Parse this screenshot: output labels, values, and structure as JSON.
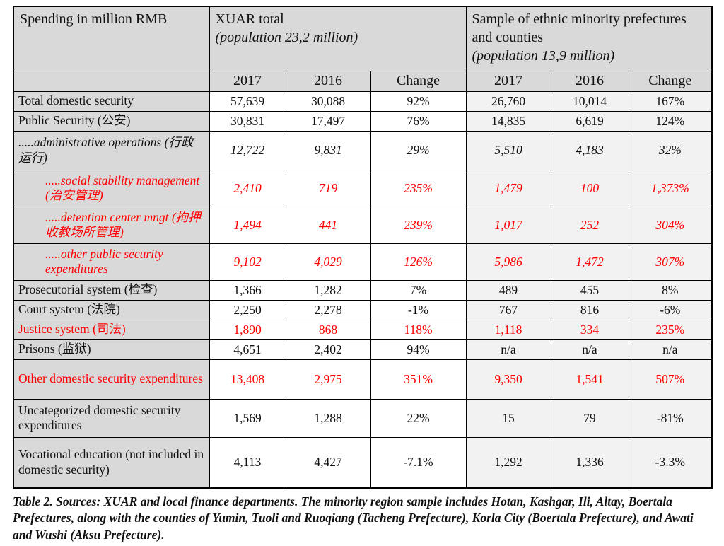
{
  "header": {
    "corner": "Spending in million RMB",
    "group_xuar": {
      "title": "XUAR total",
      "subtitle": "(population 23,2 million)"
    },
    "group_sample": {
      "title": "Sample of ethnic minority prefectures and counties",
      "subtitle": "(population 13,9 million)"
    },
    "years": [
      "2017",
      "2016",
      "Change"
    ]
  },
  "table": {
    "column_groups": [
      "XUAR total",
      "Sample of ethnic minority prefectures and counties"
    ],
    "columns": [
      "2017",
      "2016",
      "Change",
      "2017",
      "2016",
      "Change"
    ],
    "rows": [
      {
        "label": "Total domestic security",
        "values": [
          "57,639",
          "30,088",
          "92%",
          "26,760",
          "10,014",
          "167%"
        ],
        "color": "black",
        "italic": false,
        "indent": 0
      },
      {
        "label": "Public Security (公安)",
        "values": [
          "30,831",
          "17,497",
          "76%",
          "14,835",
          "6,619",
          "124%"
        ],
        "color": "black",
        "italic": false,
        "indent": 0
      },
      {
        "label": ".....administrative operations (行政运行)",
        "values": [
          "12,722",
          "9,831",
          "29%",
          "5,510",
          "4,183",
          "32%"
        ],
        "color": "black",
        "italic": true,
        "indent": 0
      },
      {
        "label": ".....social stability management (治安管理)",
        "values": [
          "2,410",
          "719",
          "235%",
          "1,479",
          "100",
          "1,373%"
        ],
        "color": "red",
        "italic": true,
        "indent": 1
      },
      {
        "label": ".....detention center mngt (拘押收教场所管理)",
        "values": [
          "1,494",
          "441",
          "239%",
          "1,017",
          "252",
          "304%"
        ],
        "color": "red",
        "italic": true,
        "indent": 1
      },
      {
        "label": ".....other public security expenditures",
        "values": [
          "9,102",
          "4,029",
          "126%",
          "5,986",
          "1,472",
          "307%"
        ],
        "color": "red",
        "italic": true,
        "indent": 1
      },
      {
        "label": "Prosecutorial system (检查)",
        "values": [
          "1,366",
          "1,282",
          "7%",
          "489",
          "455",
          "8%"
        ],
        "color": "black",
        "italic": false,
        "indent": 0
      },
      {
        "label": "Court system (法院)",
        "values": [
          "2,250",
          "2,278",
          "-1%",
          "767",
          "816",
          "-6%"
        ],
        "color": "black",
        "italic": false,
        "indent": 0
      },
      {
        "label": "Justice system (司法)",
        "values": [
          "1,890",
          "868",
          "118%",
          "1,118",
          "334",
          "235%"
        ],
        "color": "red",
        "italic": false,
        "indent": 0
      },
      {
        "label": "Prisons (监狱)",
        "values": [
          "4,651",
          "2,402",
          "94%",
          "n/a",
          "n/a",
          "n/a"
        ],
        "color": "black",
        "italic": false,
        "indent": 0
      },
      {
        "label": "Other domestic security expenditures",
        "values": [
          "13,408",
          "2,975",
          "351%",
          "9,350",
          "1,541",
          "507%"
        ],
        "color": "red",
        "italic": false,
        "indent": 0
      },
      {
        "label": "Uncategorized domestic security expenditures",
        "values": [
          "1,569",
          "1,288",
          "22%",
          "15",
          "79",
          "-81%"
        ],
        "color": "black",
        "italic": false,
        "indent": 0
      },
      {
        "label": "Vocational education (not included in domestic security)",
        "values": [
          "4,113",
          "4,427",
          "-7.1%",
          "1,292",
          "1,336",
          "-3.3%"
        ],
        "color": "black",
        "italic": false,
        "indent": 0
      }
    ]
  },
  "caption": "Table 2. Sources: XUAR and local finance departments. The minority region sample includes Hotan, Kashgar, Ili, Altay, Boertala Prefectures, along with the counties of Yumin, Tuoli and Ruoqiang (Tacheng Prefecture), Korla City (Boertala Prefecture), and Awati and Wushi (Aksu Prefecture).",
  "colors": {
    "header_bg": "#d9d9d9",
    "label_column_bg": "#d9d9d9",
    "sample_columns_bg": "#f2f2f2",
    "highlight_red": "#ff0000",
    "border": "#000000"
  }
}
